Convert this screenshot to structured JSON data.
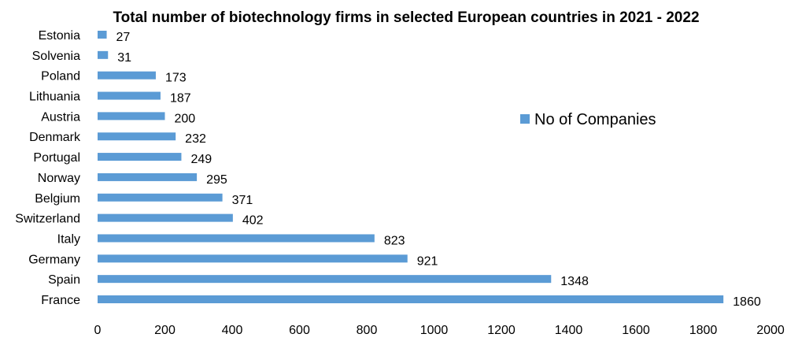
{
  "chart_data": {
    "type": "bar",
    "orientation": "horizontal",
    "title": "Total number of biotechnology firms in selected European countries in 2021 - 2022",
    "xlabel": "",
    "ylabel": "",
    "categories": [
      "Estonia",
      "Solvenia",
      "Poland",
      "Lithuania",
      "Austria",
      "Denmark",
      "Portugal",
      "Norway",
      "Belgium",
      "Switzerland",
      "Italy",
      "Germany",
      "Spain",
      "France"
    ],
    "series": [
      {
        "name": "No of Companies",
        "color": "#5b9bd5",
        "values": [
          27,
          31,
          173,
          187,
          200,
          232,
          249,
          295,
          371,
          402,
          823,
          921,
          1348,
          1860
        ]
      }
    ],
    "xlim": [
      0,
      2000
    ],
    "xticks": [
      "0",
      "200",
      "400",
      "600",
      "800",
      "1000",
      "1200",
      "1400",
      "1600",
      "1800",
      "2000"
    ],
    "data_labels": true,
    "grid": false,
    "legend_position": "right"
  }
}
